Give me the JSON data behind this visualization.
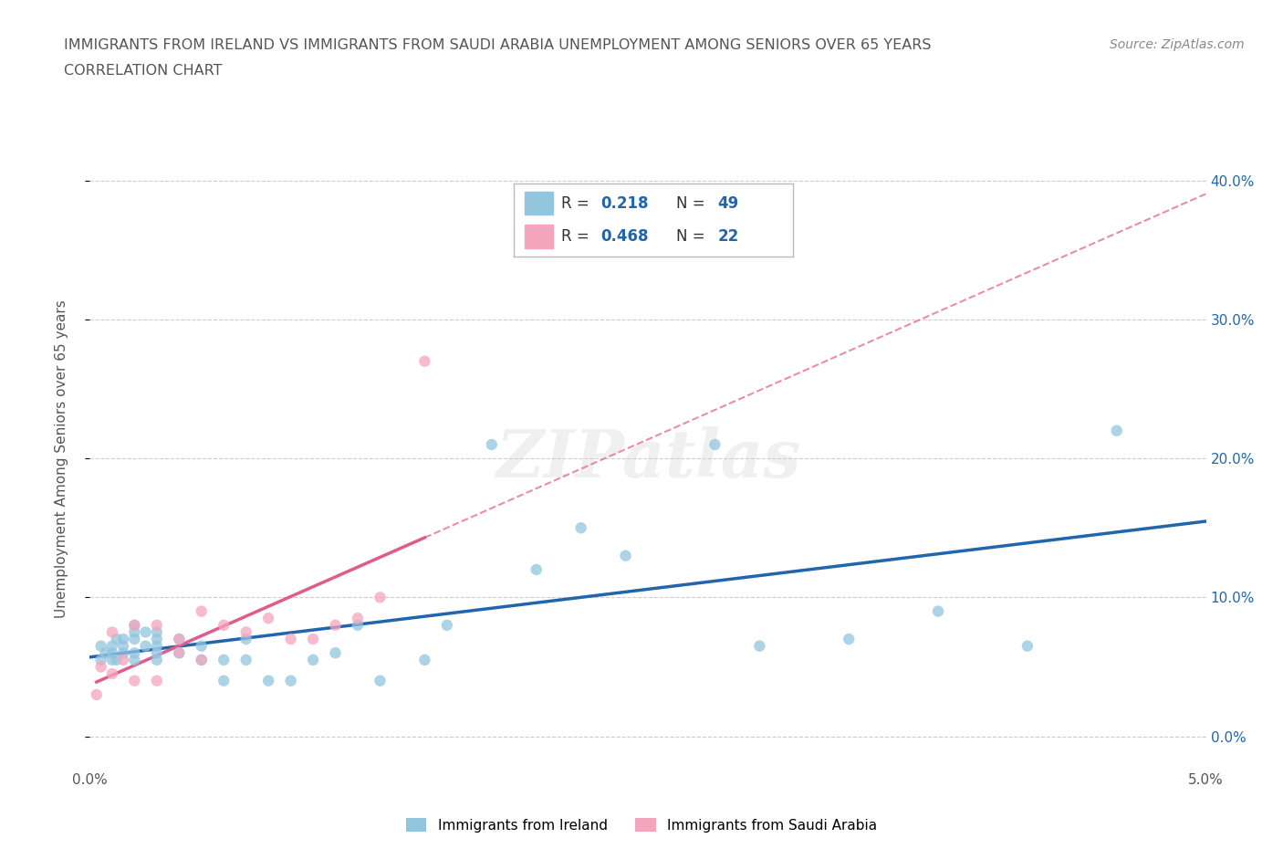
{
  "title_line1": "IMMIGRANTS FROM IRELAND VS IMMIGRANTS FROM SAUDI ARABIA UNEMPLOYMENT AMONG SENIORS OVER 65 YEARS",
  "title_line2": "CORRELATION CHART",
  "source": "Source: ZipAtlas.com",
  "ylabel": "Unemployment Among Seniors over 65 years",
  "watermark": "ZIPatlas",
  "legend_label1": "Immigrants from Ireland",
  "legend_label2": "Immigrants from Saudi Arabia",
  "R1": 0.218,
  "N1": 49,
  "R2": 0.468,
  "N2": 22,
  "color1": "#92c5de",
  "color2": "#f4a6be",
  "trendline1_color": "#2166ac",
  "trendline2_color": "#e05c8a",
  "xlim": [
    0.0,
    0.05
  ],
  "ylim": [
    -0.02,
    0.42
  ],
  "xtick_vals": [
    0.0,
    0.01,
    0.02,
    0.03,
    0.04,
    0.05
  ],
  "xtick_labels": [
    "0.0%",
    "",
    "",
    "",
    "",
    "5.0%"
  ],
  "ytick_vals": [
    0.0,
    0.1,
    0.2,
    0.3,
    0.4
  ],
  "ytick_labels": [
    "0.0%",
    "10.0%",
    "20.0%",
    "30.0%",
    "40.0%"
  ],
  "ireland_x": [
    0.0005,
    0.0005,
    0.0007,
    0.001,
    0.001,
    0.001,
    0.0012,
    0.0012,
    0.0015,
    0.0015,
    0.0015,
    0.002,
    0.002,
    0.002,
    0.002,
    0.002,
    0.0025,
    0.0025,
    0.003,
    0.003,
    0.003,
    0.003,
    0.003,
    0.004,
    0.004,
    0.005,
    0.005,
    0.006,
    0.006,
    0.007,
    0.007,
    0.008,
    0.009,
    0.01,
    0.011,
    0.012,
    0.013,
    0.015,
    0.016,
    0.018,
    0.02,
    0.022,
    0.024,
    0.028,
    0.03,
    0.034,
    0.038,
    0.042,
    0.046
  ],
  "ireland_y": [
    0.055,
    0.065,
    0.06,
    0.055,
    0.06,
    0.065,
    0.055,
    0.07,
    0.06,
    0.065,
    0.07,
    0.055,
    0.06,
    0.07,
    0.075,
    0.08,
    0.065,
    0.075,
    0.055,
    0.06,
    0.065,
    0.07,
    0.075,
    0.06,
    0.07,
    0.055,
    0.065,
    0.04,
    0.055,
    0.055,
    0.07,
    0.04,
    0.04,
    0.055,
    0.06,
    0.08,
    0.04,
    0.055,
    0.08,
    0.21,
    0.12,
    0.15,
    0.13,
    0.21,
    0.065,
    0.07,
    0.09,
    0.065,
    0.22
  ],
  "saudi_x": [
    0.0003,
    0.0005,
    0.001,
    0.001,
    0.0015,
    0.002,
    0.002,
    0.003,
    0.003,
    0.004,
    0.004,
    0.005,
    0.005,
    0.006,
    0.007,
    0.008,
    0.009,
    0.01,
    0.011,
    0.012,
    0.013,
    0.015
  ],
  "saudi_y": [
    0.03,
    0.05,
    0.045,
    0.075,
    0.055,
    0.04,
    0.08,
    0.04,
    0.08,
    0.06,
    0.07,
    0.055,
    0.09,
    0.08,
    0.075,
    0.085,
    0.07,
    0.07,
    0.08,
    0.085,
    0.1,
    0.27
  ],
  "background_color": "#ffffff",
  "grid_color": "#cccccc",
  "title_color": "#555555",
  "axis_color": "#555555",
  "right_tick_color": "#2166ac"
}
